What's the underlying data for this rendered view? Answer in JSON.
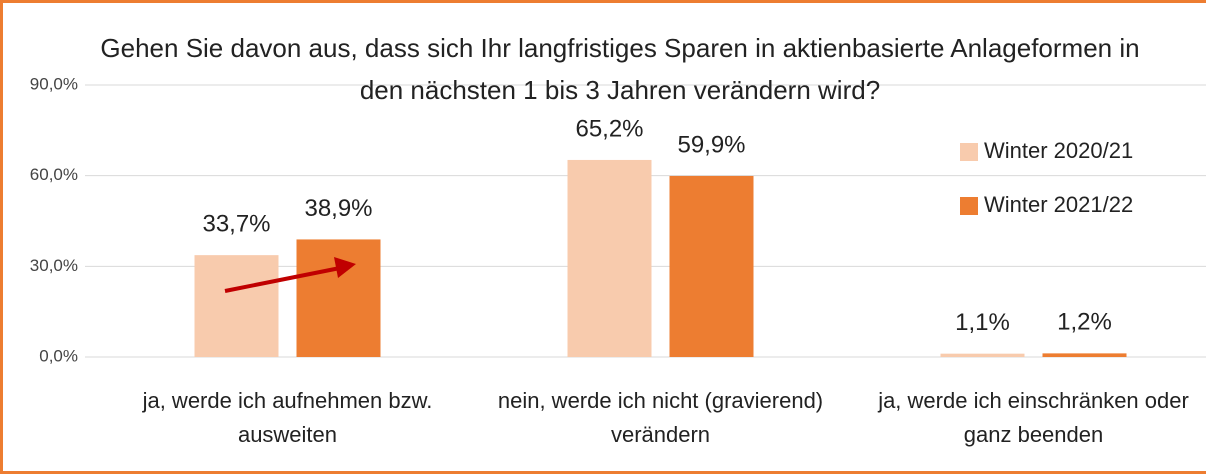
{
  "chart_data": {
    "type": "bar",
    "title": "Gehen Sie davon aus, dass sich Ihr langfristiges Sparen in aktienbasierte Anlageformen in den nächsten 1 bis 3 Jahren verändern wird?",
    "categories": [
      "ja, werde ich aufnehmen bzw. ausweiten",
      "nein, werde ich nicht (gravierend) verändern",
      "ja, werde ich einschränken oder ganz beenden"
    ],
    "series": [
      {
        "name": "Winter 2020/21",
        "color": "#f8cbad",
        "values": [
          33.7,
          65.2,
          1.1
        ],
        "value_labels": [
          "33,7%",
          "65,2%",
          "1,1%"
        ]
      },
      {
        "name": "Winter 2021/22",
        "color": "#ed7d31",
        "values": [
          38.9,
          59.9,
          1.2
        ],
        "value_labels": [
          "38,9%",
          "59,9%",
          "1,2%"
        ]
      }
    ],
    "ylim": [
      0,
      90
    ],
    "yticks": [
      {
        "value": 0,
        "label": "0,0%"
      },
      {
        "value": 30,
        "label": "30,0%"
      },
      {
        "value": 60,
        "label": "60,0%"
      },
      {
        "value": 90,
        "label": "90,0%"
      }
    ],
    "grid": true,
    "legend": "upper right"
  }
}
